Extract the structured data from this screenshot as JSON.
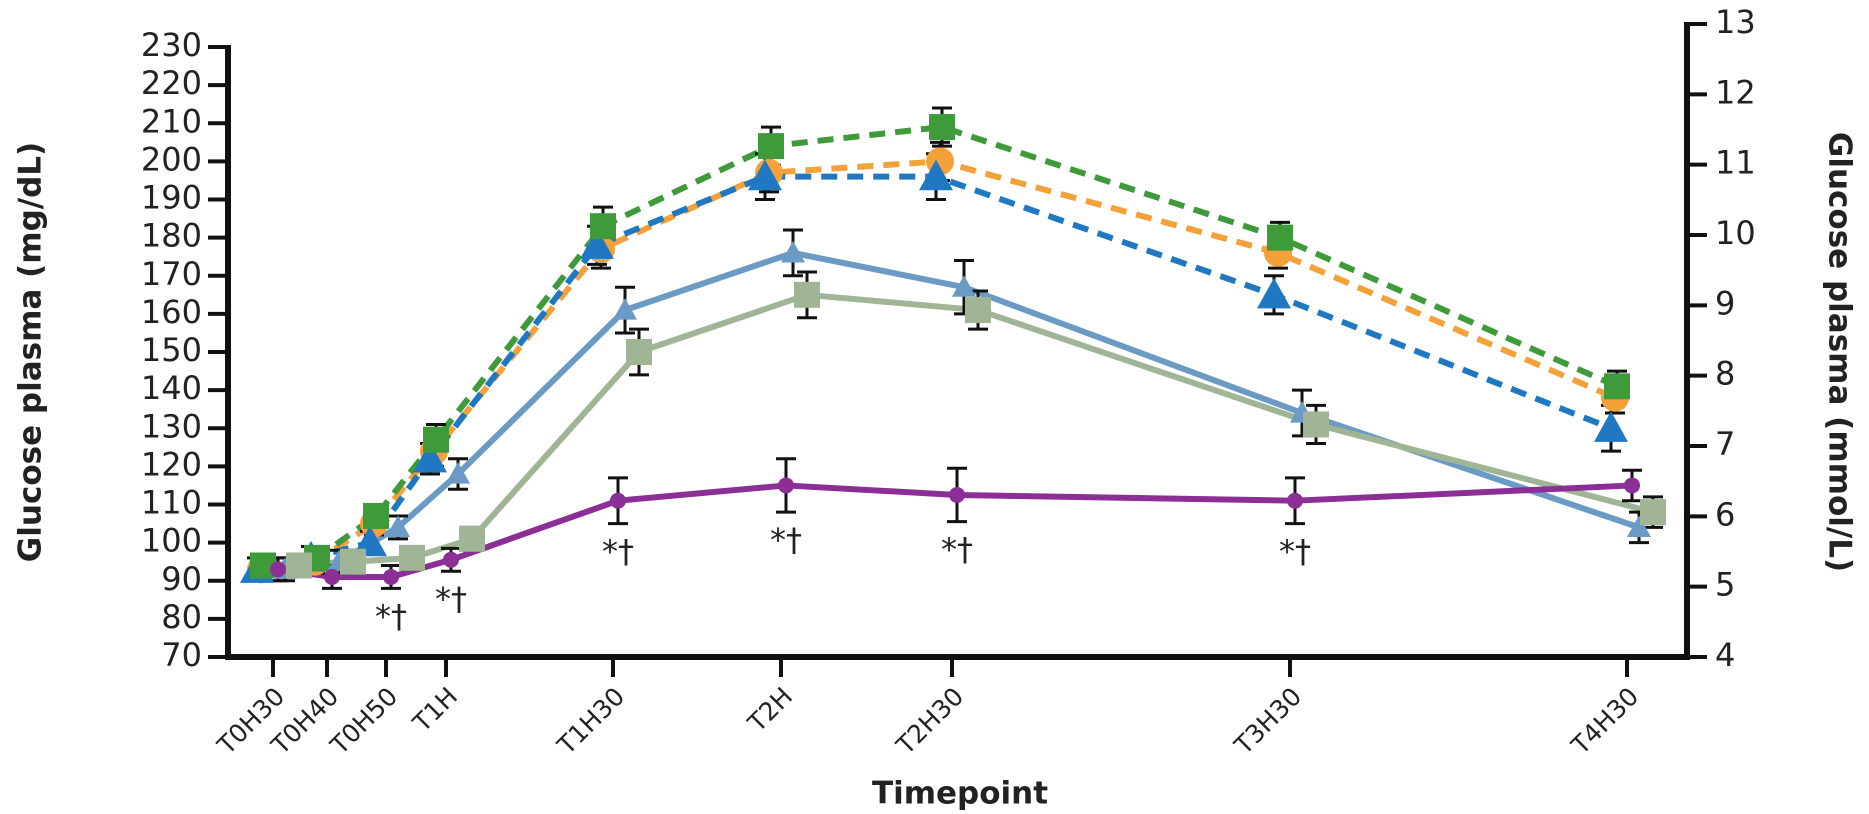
{
  "chart_data": {
    "type": "line",
    "xlabel": "Timepoint",
    "ylabel": "Glucose plasma (mg/dL)",
    "y2label": "Glucose plasma (mmol/L)",
    "categories": [
      "T0H30",
      "T0H40",
      "T0H50",
      "T1H",
      "T1H30",
      "T2H",
      "T2H30",
      "T3H30",
      "T4H30"
    ],
    "ylim": [
      70,
      230
    ],
    "yticks": [
      70,
      80,
      90,
      100,
      110,
      120,
      130,
      140,
      150,
      160,
      170,
      180,
      190,
      200,
      210,
      220,
      230
    ],
    "y2lim": [
      4,
      13
    ],
    "y2ticks": [
      4,
      5,
      6,
      7,
      8,
      9,
      10,
      11,
      12,
      13
    ],
    "series": [
      {
        "color": "#f4a13a",
        "dashed": true,
        "marker": "circle",
        "values": [
          93,
          95,
          105,
          124,
          177,
          197,
          200,
          176,
          138
        ],
        "errors": [
          3,
          3,
          3,
          4,
          5,
          5,
          5,
          4,
          4
        ]
      },
      {
        "color": "#1f78c1",
        "dashed": true,
        "marker": "triangle",
        "values": [
          93,
          96,
          100,
          122,
          178,
          196,
          196,
          165,
          130
        ],
        "errors": [
          3,
          3,
          3,
          4,
          5,
          6,
          6,
          5,
          6
        ]
      },
      {
        "color": "#3f9a3a",
        "dashed": true,
        "marker": "square",
        "values": [
          94,
          96,
          107,
          127,
          183,
          204,
          209,
          180,
          141
        ],
        "errors": [
          3,
          3,
          3,
          4,
          5,
          5,
          5,
          4,
          4
        ]
      },
      {
        "color": "#6b9ac4",
        "dashed": false,
        "marker": "triangle",
        "values": [
          93,
          95,
          104,
          118,
          161,
          176,
          167,
          134,
          104
        ],
        "errors": [
          3,
          3,
          3,
          4,
          6,
          6,
          7,
          6,
          4
        ]
      },
      {
        "color": "#9fb595",
        "dashed": false,
        "marker": "square",
        "values": [
          94,
          95,
          96,
          101,
          150,
          165,
          161,
          131,
          108
        ],
        "errors": [
          3,
          3,
          3,
          3,
          6,
          6,
          5,
          5,
          4
        ]
      },
      {
        "color": "#8b2f96",
        "dashed": false,
        "marker": "dot",
        "values": [
          93,
          91,
          91,
          95.5,
          111,
          115,
          112.5,
          111,
          115
        ],
        "errors": [
          3,
          3,
          3,
          3,
          6,
          7,
          7,
          6,
          4
        ]
      }
    ],
    "annotations": [
      {
        "text": "*†",
        "category": "T0H50"
      },
      {
        "text": "*†",
        "category": "T1H"
      },
      {
        "text": "*†",
        "category": "T1H30"
      },
      {
        "text": "*†",
        "category": "T2H"
      },
      {
        "text": "*†",
        "category": "T2H30"
      },
      {
        "text": "*†",
        "category": "T3H30"
      }
    ]
  }
}
